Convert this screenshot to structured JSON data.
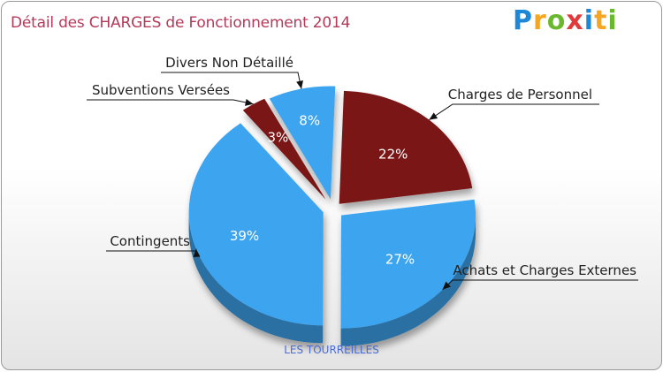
{
  "header": {
    "title": "Détail des CHARGES de Fonctionnement 2014",
    "logo": [
      "P",
      "r",
      "o",
      "x",
      "i",
      "t",
      "i"
    ]
  },
  "footer": {
    "town": "LES TOURREILLES"
  },
  "colors": {
    "blue": "#3ca4f0",
    "blue_dark": "#2a7ec0",
    "red": "#7a1414",
    "red_dark": "#520c0c"
  },
  "chart_data": {
    "type": "pie",
    "title": "Détail des CHARGES de Fonctionnement 2014",
    "slices": [
      {
        "label": "Charges de Personnel",
        "value": 22,
        "display": "22%",
        "color": "#7a1414"
      },
      {
        "label": "Achats et Charges Externes",
        "value": 27,
        "display": "27%",
        "color": "#3ca4f0"
      },
      {
        "label": "Contingents",
        "value": 39,
        "display": "39%",
        "color": "#3ca4f0"
      },
      {
        "label": "Subventions Versées",
        "value": 3,
        "display": "3%",
        "color": "#7a1414"
      },
      {
        "label": "Divers Non Détaillé",
        "value": 8,
        "display": "8%",
        "color": "#3ca4f0"
      }
    ]
  }
}
